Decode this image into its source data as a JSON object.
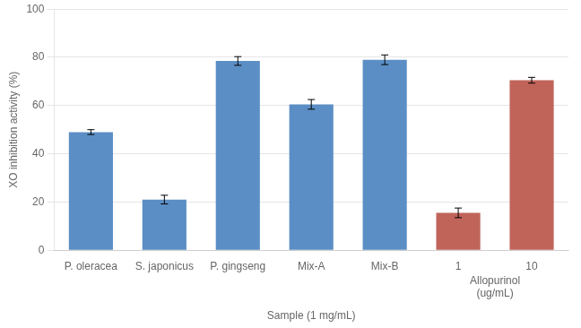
{
  "chart_data": {
    "type": "bar",
    "categories": [
      "P. oleracea",
      "S. japonicus",
      "P. gingseng",
      "Mix-A",
      "Mix-B",
      "1",
      "10"
    ],
    "values": [
      49.0,
      21.0,
      78.5,
      60.5,
      79.0,
      15.5,
      70.5
    ],
    "errors": [
      1.0,
      1.8,
      1.8,
      2.0,
      2.0,
      2.0,
      1.2
    ],
    "colors": [
      "#5b8ec4",
      "#5b8ec4",
      "#5b8ec4",
      "#5b8ec4",
      "#5b8ec4",
      "#c0645a",
      "#c0645a"
    ],
    "xlabel": "Sample (1 mg/mL)",
    "ylabel": "XO inhibition activity (%)",
    "ylim": [
      0,
      100
    ],
    "yticks": [
      0,
      20,
      40,
      60,
      80,
      100
    ],
    "grid": true,
    "annotations": [
      {
        "text": "Allopurinol\n(ug/mL)",
        "categories": [
          "1",
          "10"
        ]
      }
    ]
  }
}
